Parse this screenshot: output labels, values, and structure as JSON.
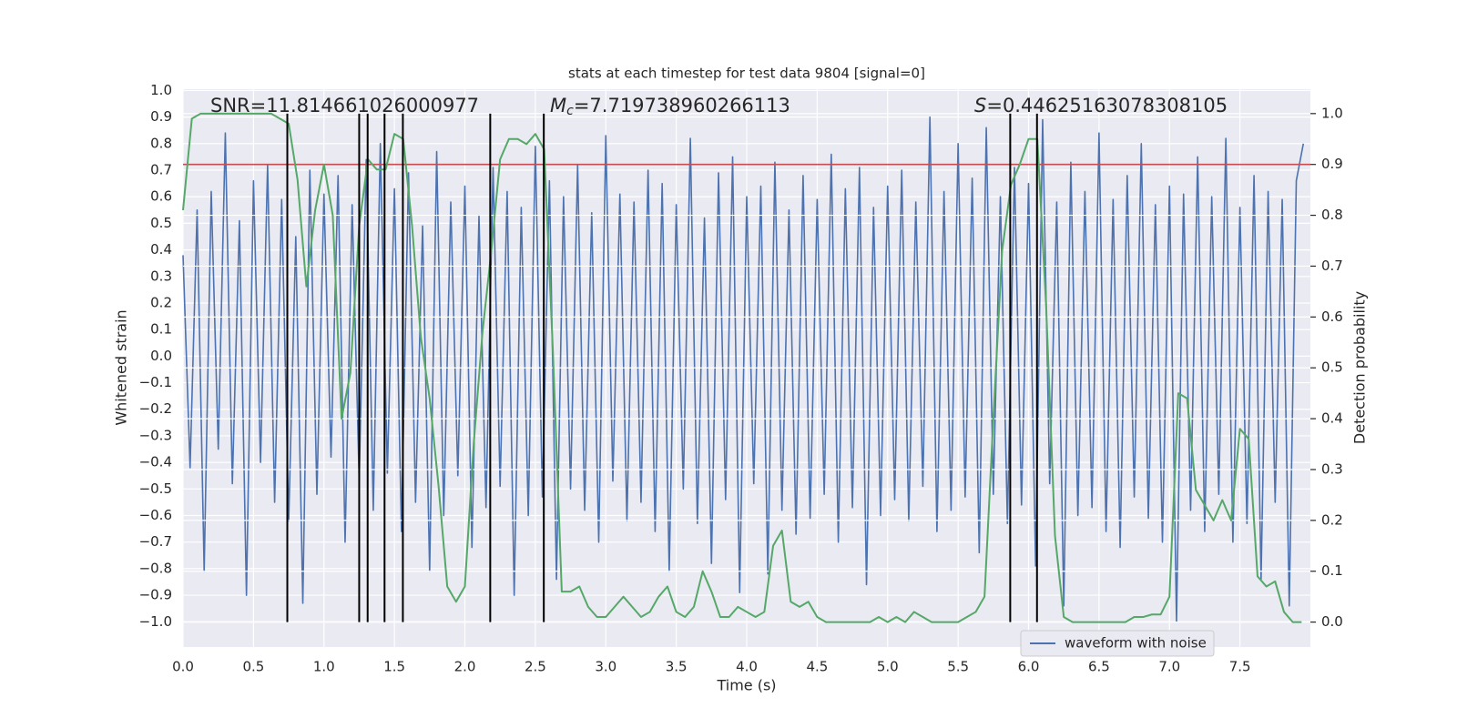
{
  "chart_data": {
    "type": "line",
    "title": "stats at each timestep for test data 9804 [signal=0]",
    "xlabel": "Time (s)",
    "ylabel": "Whitened strain",
    "y2label": "Detection probability",
    "annotations": [
      {
        "text": "SNR=11.814661026000977"
      },
      {
        "symbol": "M",
        "subscript": "c",
        "text": "=7.719738960266113"
      },
      {
        "symbol": "S",
        "text": "=0.44625163078308105"
      }
    ],
    "xlim": [
      0,
      8
    ],
    "xticks": [
      {
        "value": 0,
        "label": "0.0"
      },
      0.5,
      {
        "value": 1,
        "label": "1.0"
      },
      1.5,
      {
        "value": 2,
        "label": "2.0"
      },
      2.5,
      {
        "value": 3,
        "label": "3.0"
      },
      3.5,
      {
        "value": 4,
        "label": "4.0"
      },
      4.5,
      {
        "value": 5,
        "label": "5.0"
      },
      5.5,
      {
        "value": 6,
        "label": "6.0"
      },
      6.5,
      {
        "value": 7,
        "label": "7.0"
      },
      7.5
    ],
    "ylim": [
      -1.095,
      1.005
    ],
    "yticks": [
      {
        "value": -1,
        "label": "−1.0"
      },
      {
        "value": -0.9,
        "label": "−0.9"
      },
      {
        "value": -0.8,
        "label": "−0.8"
      },
      {
        "value": -0.7,
        "label": "−0.7"
      },
      {
        "value": -0.6,
        "label": "−0.6"
      },
      {
        "value": -0.5,
        "label": "−0.5"
      },
      {
        "value": -0.4,
        "label": "−0.4"
      },
      {
        "value": -0.3,
        "label": "−0.3"
      },
      {
        "value": -0.2,
        "label": "−0.2"
      },
      {
        "value": -0.1,
        "label": "−0.1"
      },
      {
        "value": 0,
        "label": "0.0"
      },
      0.1,
      0.2,
      0.3,
      0.4,
      0.5,
      0.6,
      0.7,
      0.8,
      0.9,
      {
        "value": 1,
        "label": "1.0"
      }
    ],
    "y2lim": [
      -0.049,
      1.048
    ],
    "y2ticks": [
      {
        "value": 0,
        "label": "0.0"
      },
      0.1,
      0.2,
      0.3,
      0.4,
      0.5,
      0.6,
      0.7,
      0.8,
      0.9,
      {
        "value": 1,
        "label": "1.0"
      }
    ],
    "grid": true,
    "background": "#eaeaf2",
    "legend": "lower right",
    "threshold": {
      "value": 0.9,
      "axis": "y2",
      "color": "#c44e52"
    },
    "event_times": [
      0.74,
      1.25,
      1.31,
      1.43,
      1.56,
      2.18,
      2.56,
      5.87,
      6.06
    ],
    "event_color": "#000000",
    "series": [
      {
        "name": "waveform with noise",
        "color": "#4c72b0",
        "x": [
          0,
          0.05,
          0.1,
          0.15,
          0.2,
          0.25,
          0.3,
          0.35,
          0.4,
          0.45,
          0.5,
          0.55,
          0.6,
          0.65,
          0.7,
          0.75,
          0.8,
          0.85,
          0.9,
          0.95,
          1,
          1.05,
          1.1,
          1.15,
          1.2,
          1.25,
          1.3,
          1.35,
          1.4,
          1.45,
          1.5,
          1.55,
          1.6,
          1.65,
          1.7,
          1.75,
          1.8,
          1.85,
          1.9,
          1.95,
          2,
          2.05,
          2.1,
          2.15,
          2.2,
          2.25,
          2.3,
          2.35,
          2.4,
          2.45,
          2.5,
          2.55,
          2.6,
          2.65,
          2.7,
          2.75,
          2.8,
          2.85,
          2.9,
          2.95,
          3,
          3.05,
          3.1,
          3.15,
          3.2,
          3.25,
          3.3,
          3.35,
          3.4,
          3.45,
          3.5,
          3.55,
          3.6,
          3.65,
          3.7,
          3.75,
          3.8,
          3.85,
          3.9,
          3.95,
          4,
          4.05,
          4.1,
          4.15,
          4.2,
          4.25,
          4.3,
          4.35,
          4.4,
          4.45,
          4.5,
          4.55,
          4.6,
          4.65,
          4.7,
          4.75,
          4.8,
          4.85,
          4.9,
          4.95,
          5,
          5.05,
          5.1,
          5.15,
          5.2,
          5.25,
          5.3,
          5.35,
          5.4,
          5.45,
          5.5,
          5.55,
          5.6,
          5.65,
          5.7,
          5.75,
          5.8,
          5.85,
          5.9,
          5.95,
          6,
          6.05,
          6.1,
          6.15,
          6.2,
          6.25,
          6.3,
          6.35,
          6.4,
          6.45,
          6.5,
          6.55,
          6.6,
          6.65,
          6.7,
          6.75,
          6.8,
          6.85,
          6.9,
          6.95,
          7,
          7.05,
          7.1,
          7.15,
          7.2,
          7.25,
          7.3,
          7.35,
          7.4,
          7.45,
          7.5,
          7.55,
          7.6,
          7.65,
          7.7,
          7.75,
          7.8,
          7.85,
          7.9,
          7.95
        ],
        "values": [
          0.38,
          -0.42,
          0.55,
          -0.81,
          0.62,
          -0.35,
          0.84,
          -0.48,
          0.51,
          -0.9,
          0.66,
          -0.4,
          0.72,
          -0.55,
          0.59,
          -0.62,
          0.45,
          -0.93,
          0.7,
          -0.52,
          0.61,
          -0.38,
          0.68,
          -0.7,
          0.57,
          -0.47,
          0.74,
          -0.58,
          0.8,
          -0.44,
          0.63,
          -0.66,
          0.69,
          -0.55,
          0.49,
          -0.81,
          0.77,
          -0.6,
          0.58,
          -0.45,
          0.64,
          -0.72,
          0.53,
          -0.57,
          0.71,
          -0.49,
          0.62,
          -0.9,
          0.56,
          -0.6,
          0.79,
          -0.53,
          0.66,
          -0.84,
          0.6,
          -0.5,
          0.72,
          -0.58,
          0.54,
          -0.7,
          0.83,
          -0.47,
          0.61,
          -0.62,
          0.58,
          -0.55,
          0.7,
          -0.66,
          0.65,
          -0.81,
          0.57,
          -0.5,
          0.82,
          -0.63,
          0.52,
          -0.78,
          0.69,
          -0.54,
          0.75,
          -0.89,
          0.6,
          -0.48,
          0.64,
          -0.82,
          0.73,
          -0.58,
          0.55,
          -0.67,
          0.68,
          -0.61,
          0.59,
          -0.52,
          0.76,
          -0.7,
          0.63,
          -0.57,
          0.71,
          -0.86,
          0.56,
          -0.6,
          0.64,
          -0.54,
          0.7,
          -0.62,
          0.58,
          -0.49,
          0.9,
          -0.66,
          0.62,
          -0.58,
          0.8,
          -0.53,
          0.67,
          -0.74,
          0.86,
          -0.52,
          0.6,
          -0.63,
          0.71,
          -0.56,
          0.65,
          -0.79,
          0.89,
          -0.48,
          0.58,
          -0.94,
          0.73,
          -0.6,
          0.62,
          -0.57,
          0.84,
          -0.66,
          0.59,
          -0.72,
          0.68,
          -0.53,
          0.8,
          -0.61,
          0.57,
          -0.7,
          0.64,
          -1.0,
          0.61,
          -0.58,
          0.75,
          -0.66,
          0.6,
          -0.52,
          0.82,
          -0.7,
          0.56,
          -0.63,
          0.68,
          -0.84,
          0.62,
          -0.55,
          0.59,
          -0.94,
          0.66,
          0.8
        ]
      },
      {
        "color": "#55a868",
        "axis": "y2",
        "x": [
          0,
          0.0625,
          0.125,
          0.1875,
          0.25,
          0.3125,
          0.375,
          0.4375,
          0.5,
          0.5625,
          0.625,
          0.6875,
          0.75,
          0.8125,
          0.875,
          0.9375,
          1,
          1.0625,
          1.125,
          1.1875,
          1.25,
          1.3125,
          1.375,
          1.4375,
          1.5,
          1.5625,
          1.625,
          1.6875,
          1.75,
          1.8125,
          1.875,
          1.9375,
          2,
          2.0625,
          2.125,
          2.1875,
          2.25,
          2.3125,
          2.375,
          2.4375,
          2.5,
          2.5625,
          2.625,
          2.6875,
          2.75,
          2.8125,
          2.875,
          2.9375,
          3,
          3.0625,
          3.125,
          3.1875,
          3.25,
          3.3125,
          3.375,
          3.4375,
          3.5,
          3.5625,
          3.625,
          3.6875,
          3.75,
          3.8125,
          3.875,
          3.9375,
          4,
          4.0625,
          4.125,
          4.1875,
          4.25,
          4.3125,
          4.375,
          4.4375,
          4.5,
          4.5625,
          4.625,
          4.6875,
          4.75,
          4.8125,
          4.875,
          4.9375,
          5,
          5.0625,
          5.125,
          5.1875,
          5.25,
          5.3125,
          5.375,
          5.4375,
          5.5,
          5.5625,
          5.625,
          5.6875,
          5.75,
          5.8125,
          5.875,
          5.9375,
          6,
          6.0625,
          6.125,
          6.1875,
          6.25,
          6.3125,
          6.375,
          6.4375,
          6.5,
          6.5625,
          6.625,
          6.6875,
          6.75,
          6.8125,
          6.875,
          6.9375,
          7,
          7.0625,
          7.125,
          7.1875,
          7.25,
          7.3125,
          7.375,
          7.4375,
          7.5,
          7.5625,
          7.625,
          7.6875,
          7.75,
          7.8125,
          7.875,
          7.9375
        ],
        "values": [
          0.81,
          0.99,
          1.0,
          1.0,
          1.0,
          1.0,
          1.0,
          1.0,
          1.0,
          1.0,
          1.0,
          0.99,
          0.98,
          0.87,
          0.66,
          0.81,
          0.9,
          0.8,
          0.4,
          0.49,
          0.78,
          0.91,
          0.89,
          0.89,
          0.96,
          0.95,
          0.78,
          0.56,
          0.44,
          0.27,
          0.07,
          0.04,
          0.07,
          0.35,
          0.57,
          0.73,
          0.91,
          0.95,
          0.95,
          0.94,
          0.96,
          0.93,
          0.53,
          0.06,
          0.06,
          0.07,
          0.03,
          0.01,
          0.01,
          0.03,
          0.05,
          0.03,
          0.01,
          0.02,
          0.05,
          0.07,
          0.02,
          0.01,
          0.03,
          0.1,
          0.06,
          0.01,
          0.01,
          0.03,
          0.02,
          0.01,
          0.02,
          0.15,
          0.18,
          0.04,
          0.03,
          0.04,
          0.01,
          0.0,
          0.0,
          0.0,
          0.0,
          0.0,
          0.0,
          0.01,
          0.0,
          0.01,
          0.0,
          0.02,
          0.01,
          0.0,
          0.0,
          0.0,
          0.0,
          0.01,
          0.02,
          0.05,
          0.4,
          0.73,
          0.86,
          0.9,
          0.95,
          0.95,
          0.62,
          0.17,
          0.01,
          0.0,
          0.0,
          0.0,
          0.0,
          0.0,
          0.0,
          0.0,
          0.01,
          0.01,
          0.015,
          0.015,
          0.05,
          0.45,
          0.44,
          0.26,
          0.23,
          0.2,
          0.24,
          0.2,
          0.38,
          0.36,
          0.09,
          0.07,
          0.08,
          0.02,
          0.0,
          0.0
        ]
      }
    ]
  }
}
